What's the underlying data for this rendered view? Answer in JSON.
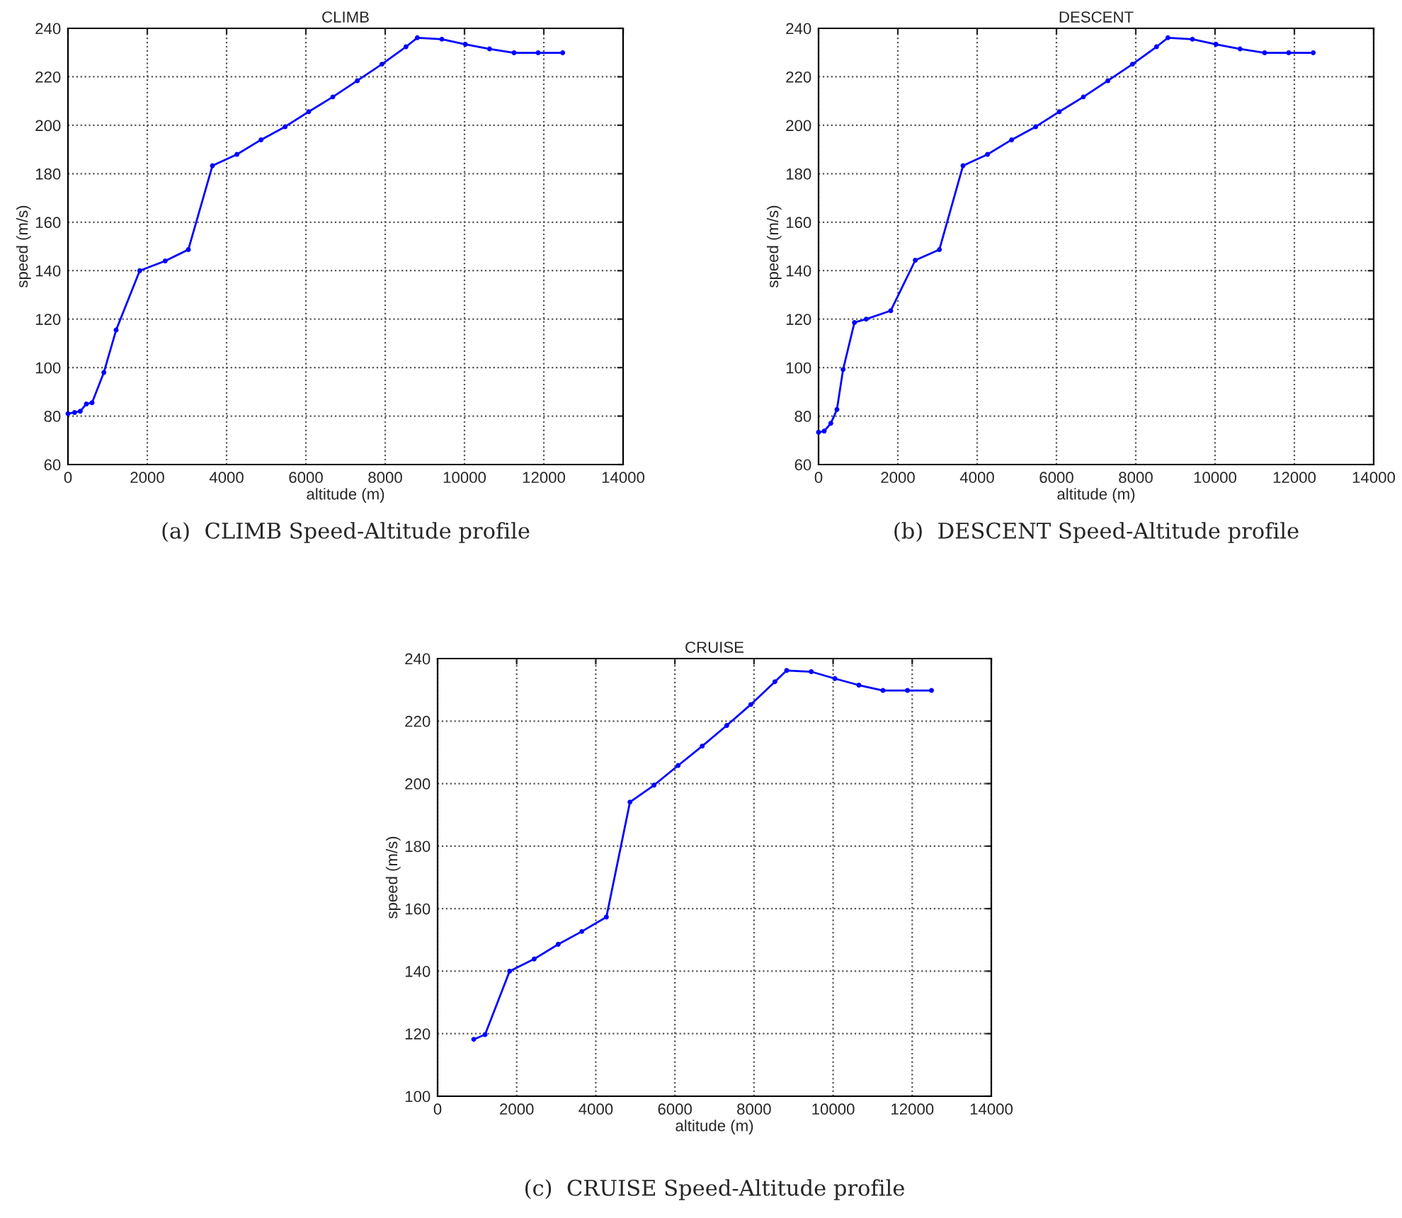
{
  "chart_data": [
    {
      "type": "line",
      "title": "CLIMB",
      "xlabel": "altitude (m)",
      "ylabel": "speed (m/s)",
      "annotations": [
        "(a)  CLIMB Speed-Altitude profile"
      ],
      "marker": "circle",
      "line_style": "solid",
      "grid": true,
      "xlim": [
        0,
        14000
      ],
      "xticks": [
        0,
        2000,
        4000,
        6000,
        8000,
        10000,
        12000,
        14000
      ],
      "ylim": [
        60,
        240
      ],
      "yticks": [
        60,
        80,
        100,
        120,
        140,
        160,
        180,
        200,
        220,
        240
      ],
      "series": [
        {
          "color": "#0000ff",
          "x": [
            0,
            167,
            310,
            464,
            607,
            905,
            1214,
            1810,
            2452,
            3036,
            3643,
            4262,
            4869,
            5476,
            6071,
            6679,
            7298,
            7917,
            8524,
            8810,
            9429,
            10024,
            10631,
            11250,
            11857,
            12476
          ],
          "values": [
            81,
            81.5,
            82,
            85,
            85.5,
            98,
            115.5,
            140,
            144,
            148.7,
            183.3,
            188,
            194,
            199.4,
            205.6,
            211.7,
            218.4,
            225.2,
            232.4,
            236.1,
            235.5,
            233.4,
            231.5,
            229.9,
            229.9,
            229.9
          ]
        }
      ]
    },
    {
      "type": "line",
      "title": "DESCENT",
      "xlabel": "altitude (m)",
      "ylabel": "speed (m/s)",
      "annotations": [
        "(b)  DESCENT Speed-Altitude profile"
      ],
      "marker": "circle",
      "line_style": "solid",
      "grid": true,
      "xlim": [
        0,
        14000
      ],
      "xticks": [
        0,
        2000,
        4000,
        6000,
        8000,
        10000,
        12000,
        14000
      ],
      "ylim": [
        60,
        240
      ],
      "yticks": [
        60,
        80,
        100,
        120,
        140,
        160,
        180,
        200,
        220,
        240
      ],
      "series": [
        {
          "color": "#0000ff",
          "x": [
            0,
            143,
            310,
            464,
            619,
            905,
            1202,
            1821,
            2440,
            3048,
            3643,
            4262,
            4869,
            5476,
            6071,
            6679,
            7298,
            7917,
            8524,
            8810,
            9429,
            10024,
            10631,
            11250,
            11857,
            12476
          ],
          "values": [
            73.3,
            73.8,
            77,
            82.7,
            99.2,
            118.6,
            120,
            123.5,
            144.3,
            148.7,
            183.3,
            188,
            194,
            199.4,
            205.6,
            211.7,
            218.4,
            225.2,
            232.4,
            236.1,
            235.5,
            233.4,
            231.5,
            229.9,
            229.9,
            229.9
          ]
        }
      ]
    },
    {
      "type": "line",
      "title": "CRUISE",
      "xlabel": "altitude (m)",
      "ylabel": "speed (m/s)",
      "annotations": [
        "(c)  CRUISE Speed-Altitude profile"
      ],
      "marker": "circle",
      "line_style": "solid",
      "grid": true,
      "xlim": [
        0,
        14000
      ],
      "xticks": [
        0,
        2000,
        4000,
        6000,
        8000,
        10000,
        12000,
        14000
      ],
      "ylim": [
        100,
        240
      ],
      "yticks": [
        100,
        120,
        140,
        160,
        180,
        200,
        220,
        240
      ],
      "series": [
        {
          "color": "#0000ff",
          "x": [
            914,
            1200,
            1821,
            2442,
            3050,
            3647,
            4268,
            4864,
            5473,
            6081,
            6690,
            7311,
            7919,
            8528,
            8826,
            9447,
            10044,
            10652,
            11260,
            11880,
            12488
          ],
          "values": [
            118.2,
            119.7,
            140,
            143.9,
            148.6,
            152.7,
            157.3,
            194.1,
            199.5,
            205.8,
            212,
            218.6,
            225.3,
            232.6,
            236.2,
            235.8,
            233.6,
            231.5,
            229.8,
            229.8,
            229.8
          ]
        }
      ]
    }
  ]
}
